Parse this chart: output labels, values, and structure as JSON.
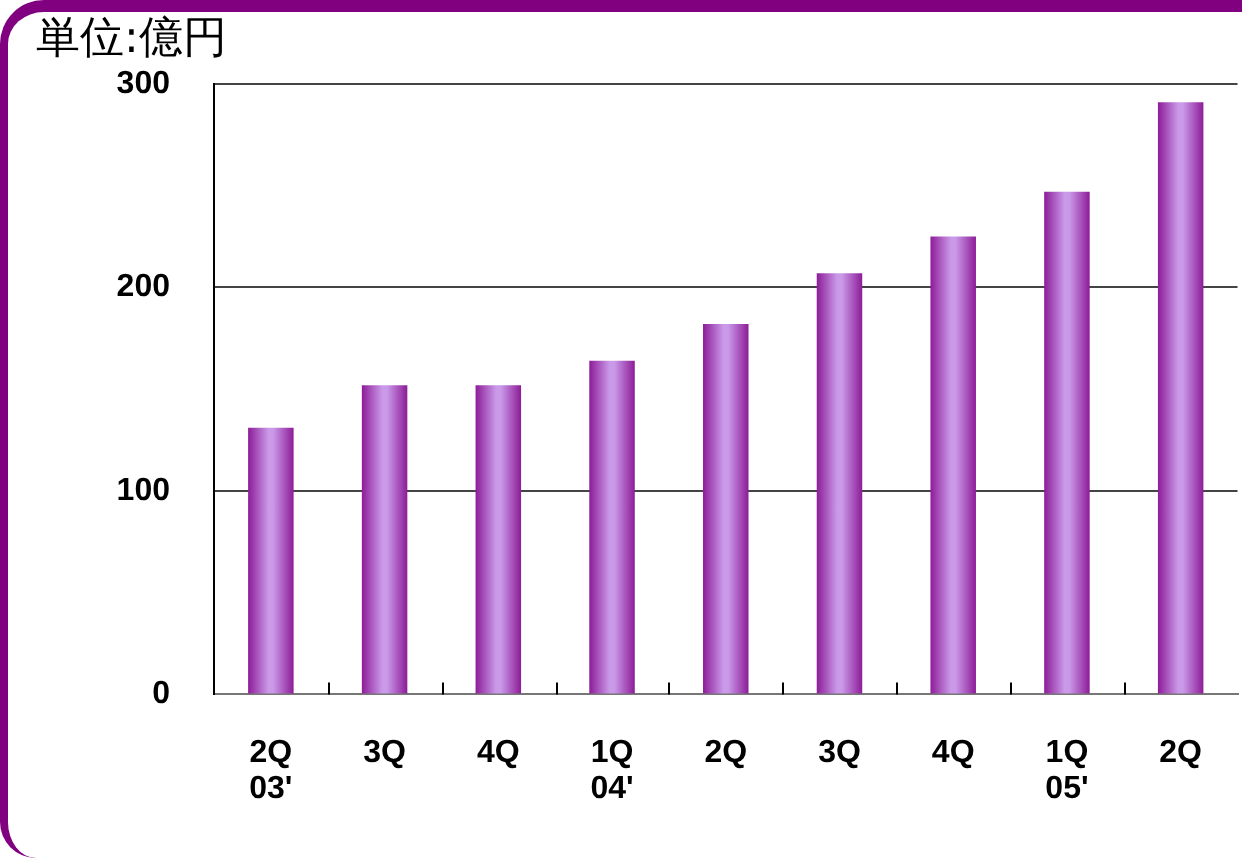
{
  "chart_data": {
    "type": "bar",
    "title": "単位:億円",
    "categories": [
      "2Q\n03'",
      "3Q",
      "4Q",
      "1Q\n04'",
      "2Q",
      "3Q",
      "4Q",
      "1Q\n05'",
      "2Q"
    ],
    "values": [
      131,
      152,
      152,
      164,
      182,
      207,
      225,
      247,
      291
    ],
    "color": "#b36ee0",
    "ylim": [
      0,
      300
    ],
    "yticks": [
      0,
      100,
      200,
      300
    ],
    "grid": "y"
  }
}
